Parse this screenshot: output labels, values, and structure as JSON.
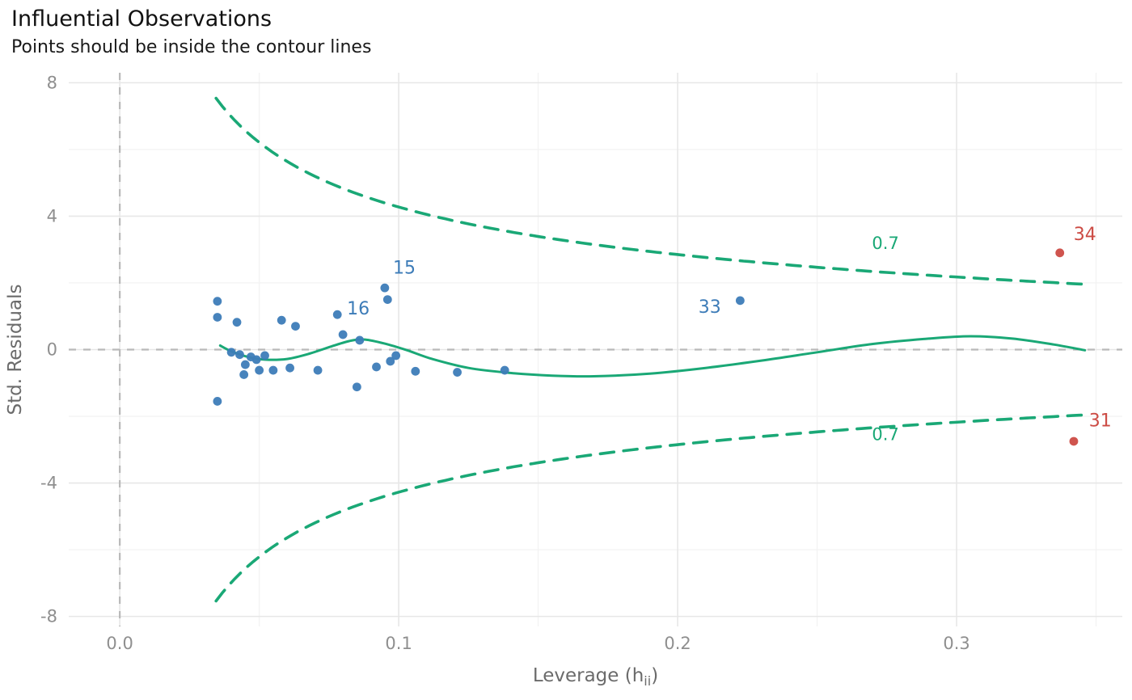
{
  "header": {
    "title": "Influential Observations",
    "subtitle": "Points should be inside the contour lines"
  },
  "chart_data": {
    "type": "scatter",
    "title": "Influential Observations",
    "subtitle": "Points should be inside the contour lines",
    "xlabel": {
      "prefix": "Leverage (h",
      "sub": "ii",
      "suffix": ")"
    },
    "ylabel": "Std. Residuals",
    "xlim": [
      -0.0183,
      0.3594
    ],
    "ylim": [
      -8.3,
      8.3
    ],
    "x_ticks": [
      {
        "v": 0.0,
        "label": "0.0"
      },
      {
        "v": 0.1,
        "label": "0.1"
      },
      {
        "v": 0.2,
        "label": "0.2"
      },
      {
        "v": 0.3,
        "label": "0.3"
      }
    ],
    "x_minor": [
      0.05,
      0.15,
      0.25,
      0.35
    ],
    "y_ticks": [
      {
        "v": -8,
        "label": "-8"
      },
      {
        "v": -4,
        "label": "-4"
      },
      {
        "v": 0,
        "label": "0"
      },
      {
        "v": 4,
        "label": "4"
      },
      {
        "v": 8,
        "label": "8"
      }
    ],
    "y_minor": [
      -6,
      -2,
      2,
      6
    ],
    "ref_lines": {
      "x": 0,
      "y": 0
    },
    "contour": {
      "cook_distance": 0.7,
      "k": 2.03,
      "h_start": 0.0345,
      "h_end": 0.346,
      "labels": [
        {
          "text": "0.7",
          "x": 0.2745,
          "y": 3.02
        },
        {
          "text": "0.7",
          "x": 0.2745,
          "y": -2.72
        }
      ]
    },
    "smooth_line": [
      [
        0.036,
        0.12
      ],
      [
        0.04,
        -0.05
      ],
      [
        0.046,
        -0.22
      ],
      [
        0.052,
        -0.3
      ],
      [
        0.06,
        -0.28
      ],
      [
        0.068,
        -0.12
      ],
      [
        0.076,
        0.1
      ],
      [
        0.083,
        0.27
      ],
      [
        0.088,
        0.3
      ],
      [
        0.095,
        0.18
      ],
      [
        0.103,
        -0.02
      ],
      [
        0.112,
        -0.28
      ],
      [
        0.125,
        -0.55
      ],
      [
        0.14,
        -0.7
      ],
      [
        0.155,
        -0.78
      ],
      [
        0.17,
        -0.8
      ],
      [
        0.19,
        -0.72
      ],
      [
        0.21,
        -0.55
      ],
      [
        0.23,
        -0.33
      ],
      [
        0.25,
        -0.08
      ],
      [
        0.27,
        0.17
      ],
      [
        0.29,
        0.33
      ],
      [
        0.305,
        0.4
      ],
      [
        0.32,
        0.33
      ],
      [
        0.335,
        0.15
      ],
      [
        0.346,
        -0.02
      ]
    ],
    "points": [
      {
        "x": 0.035,
        "y": 1.45
      },
      {
        "x": 0.035,
        "y": 0.97
      },
      {
        "x": 0.035,
        "y": -1.55
      },
      {
        "x": 0.042,
        "y": 0.82
      },
      {
        "x": 0.04,
        "y": -0.08
      },
      {
        "x": 0.043,
        "y": -0.15
      },
      {
        "x": 0.0445,
        "y": -0.75
      },
      {
        "x": 0.045,
        "y": -0.45
      },
      {
        "x": 0.047,
        "y": -0.22
      },
      {
        "x": 0.049,
        "y": -0.3
      },
      {
        "x": 0.05,
        "y": -0.62
      },
      {
        "x": 0.052,
        "y": -0.18
      },
      {
        "x": 0.055,
        "y": -0.62
      },
      {
        "x": 0.058,
        "y": 0.88
      },
      {
        "x": 0.061,
        "y": -0.55
      },
      {
        "x": 0.063,
        "y": 0.7
      },
      {
        "x": 0.071,
        "y": -0.62
      },
      {
        "x": 0.08,
        "y": 0.45
      },
      {
        "x": 0.086,
        "y": 0.28
      },
      {
        "x": 0.085,
        "y": -1.12
      },
      {
        "x": 0.092,
        "y": -0.52
      },
      {
        "x": 0.096,
        "y": 1.5
      },
      {
        "x": 0.097,
        "y": -0.35
      },
      {
        "x": 0.099,
        "y": -0.18
      },
      {
        "x": 0.106,
        "y": -0.65
      },
      {
        "x": 0.121,
        "y": -0.68
      },
      {
        "x": 0.138,
        "y": -0.62
      }
    ],
    "labeled_points": [
      {
        "label": "15",
        "x": 0.095,
        "y": 1.85,
        "lx": 0.102,
        "ly": 2.28
      },
      {
        "label": "16",
        "x": 0.078,
        "y": 1.05,
        "lx": 0.0855,
        "ly": 1.06
      },
      {
        "label": "33",
        "x": 0.2224,
        "y": 1.47,
        "lx": 0.2115,
        "ly": 1.1
      }
    ],
    "outliers": [
      {
        "label": "34",
        "x": 0.337,
        "y": 2.9,
        "lx": 0.346,
        "ly": 3.28
      },
      {
        "label": "31",
        "x": 0.342,
        "y": -2.75,
        "lx": 0.3515,
        "ly": -2.3
      }
    ],
    "colors": {
      "point_blue": "#3d7cb8",
      "outlier_red": "#cc4b44",
      "line_green": "#1aa876",
      "grid_major": "#e7e7e7",
      "grid_minor": "#f3f3f3",
      "ref_line": "#b9b9b9",
      "axis_text": "#8f8f8f",
      "axis_title": "#6b6b6b"
    }
  }
}
